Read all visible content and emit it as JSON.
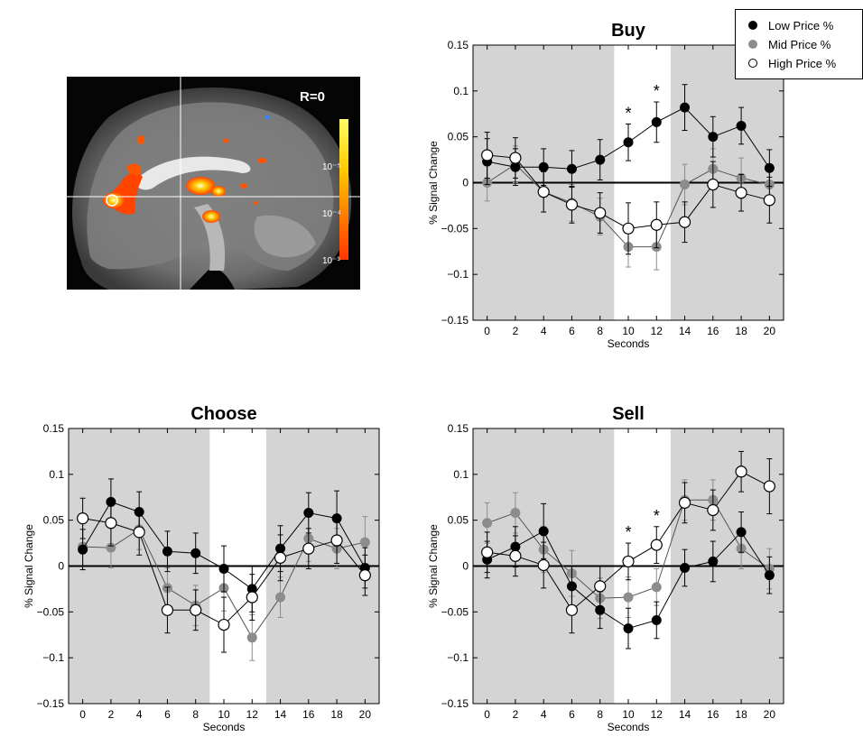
{
  "colors": {
    "low": "#000000",
    "mid": "#8c8c8c",
    "high": "#ffffff",
    "shade": "#d4d4d4"
  },
  "brain": {
    "label": "R=0",
    "colorbar_ticks": [
      "10⁻⁵",
      "10⁻⁴",
      "10⁻³"
    ]
  },
  "legend": [
    {
      "name": "Low Price %",
      "key": "low"
    },
    {
      "name": "Mid Price %",
      "key": "mid"
    },
    {
      "name": "High Price %",
      "key": "high"
    }
  ],
  "chart_data": [
    {
      "type": "line",
      "title": "Buy",
      "xlabel": "Seconds",
      "ylabel": "% Signal Change",
      "xlim": [
        -1,
        21
      ],
      "ylim": [
        -0.15,
        0.15
      ],
      "x": [
        0,
        2,
        4,
        6,
        8,
        10,
        12,
        14,
        16,
        18,
        20
      ],
      "yticks": [
        "0.15",
        "0.1",
        "0.05",
        "0",
        "−0.05",
        "−0.1",
        "−0.15"
      ],
      "shaded_regions": [
        [
          -1,
          9
        ],
        [
          13,
          21
        ]
      ],
      "asterisks_at": [
        10,
        12
      ],
      "series": [
        {
          "name": "Low Price %",
          "key": "low",
          "values": [
            0.023,
            0.017,
            0.017,
            0.015,
            0.025,
            0.044,
            0.066,
            0.082,
            0.05,
            0.062,
            0.016
          ],
          "errors": [
            0.025,
            0.02,
            0.02,
            0.02,
            0.022,
            0.02,
            0.022,
            0.025,
            0.022,
            0.02,
            0.02
          ]
        },
        {
          "name": "Mid Price %",
          "key": "mid",
          "values": [
            0.0,
            0.02,
            -0.01,
            -0.022,
            -0.037,
            -0.07,
            -0.07,
            -0.002,
            0.015,
            0.005,
            -0.002
          ],
          "errors": [
            0.02,
            0.02,
            0.022,
            0.02,
            0.02,
            0.022,
            0.025,
            0.022,
            0.022,
            0.022,
            0.022
          ]
        },
        {
          "name": "High Price %",
          "key": "high",
          "values": [
            0.03,
            0.027,
            -0.01,
            -0.024,
            -0.033,
            -0.05,
            -0.046,
            -0.043,
            -0.002,
            -0.011,
            -0.019
          ],
          "errors": [
            0.025,
            0.022,
            0.022,
            0.02,
            0.022,
            0.028,
            0.025,
            0.022,
            0.025,
            0.02,
            0.025
          ]
        }
      ]
    },
    {
      "type": "line",
      "title": "Choose",
      "xlabel": "Seconds",
      "ylabel": "% Signal Change",
      "xlim": [
        -1,
        21
      ],
      "ylim": [
        -0.15,
        0.15
      ],
      "x": [
        0,
        2,
        4,
        6,
        8,
        10,
        12,
        14,
        16,
        18,
        20
      ],
      "yticks": [
        "0.15",
        "0.1",
        "0.05",
        "0",
        "−0.05",
        "−0.1",
        "−0.15"
      ],
      "shaded_regions": [
        [
          -1,
          9
        ],
        [
          13,
          21
        ]
      ],
      "asterisks_at": [],
      "series": [
        {
          "name": "Low Price %",
          "key": "low",
          "values": [
            0.018,
            0.07,
            0.059,
            0.016,
            0.014,
            -0.003,
            -0.025,
            0.019,
            0.058,
            0.052,
            -0.002
          ],
          "errors": [
            0.022,
            0.025,
            0.022,
            0.022,
            0.022,
            0.025,
            0.025,
            0.025,
            0.022,
            0.03,
            0.022
          ]
        },
        {
          "name": "Mid Price %",
          "key": "mid",
          "values": [
            0.021,
            0.02,
            0.04,
            -0.024,
            -0.043,
            -0.024,
            -0.078,
            -0.034,
            0.03,
            0.019,
            0.026
          ],
          "errors": [
            0.025,
            0.022,
            0.022,
            0.022,
            0.022,
            0.025,
            0.025,
            0.022,
            0.025,
            0.022,
            0.028
          ]
        },
        {
          "name": "High Price %",
          "key": "high",
          "values": [
            0.052,
            0.047,
            0.037,
            -0.048,
            -0.048,
            -0.064,
            -0.034,
            0.009,
            0.019,
            0.028,
            -0.01
          ],
          "errors": [
            0.022,
            0.025,
            0.025,
            0.025,
            0.022,
            0.03,
            0.025,
            0.025,
            0.022,
            0.025,
            0.022
          ]
        }
      ]
    },
    {
      "type": "line",
      "title": "Sell",
      "xlabel": "Seconds",
      "ylabel": "% Signal Change",
      "xlim": [
        -1,
        21
      ],
      "ylim": [
        -0.15,
        0.15
      ],
      "x": [
        0,
        2,
        4,
        6,
        8,
        10,
        12,
        14,
        16,
        18,
        20
      ],
      "yticks": [
        "0.15",
        "0.1",
        "0.05",
        "0",
        "−0.05",
        "−0.1",
        "−0.15"
      ],
      "shaded_regions": [
        [
          -1,
          9
        ],
        [
          13,
          21
        ]
      ],
      "asterisks_at": [
        10,
        12
      ],
      "series": [
        {
          "name": "Low Price %",
          "key": "low",
          "values": [
            0.007,
            0.021,
            0.038,
            -0.022,
            -0.048,
            -0.068,
            -0.059,
            -0.002,
            0.005,
            0.037,
            -0.01
          ],
          "errors": [
            0.02,
            0.022,
            0.03,
            0.022,
            0.02,
            0.022,
            0.02,
            0.02,
            0.022,
            0.022,
            0.02
          ]
        },
        {
          "name": "Mid Price %",
          "key": "mid",
          "values": [
            0.047,
            0.058,
            0.018,
            -0.008,
            -0.035,
            -0.034,
            -0.023,
            0.072,
            0.072,
            0.019,
            -0.003
          ],
          "errors": [
            0.022,
            0.022,
            0.025,
            0.025,
            0.022,
            0.022,
            0.02,
            0.022,
            0.022,
            0.022,
            0.022
          ]
        },
        {
          "name": "High Price %",
          "key": "high",
          "values": [
            0.015,
            0.011,
            0.001,
            -0.048,
            -0.022,
            0.005,
            0.023,
            0.069,
            0.061,
            0.103,
            0.087
          ],
          "errors": [
            0.022,
            0.022,
            0.025,
            0.025,
            0.022,
            0.02,
            0.02,
            0.022,
            0.022,
            0.022,
            0.03
          ]
        }
      ]
    }
  ]
}
